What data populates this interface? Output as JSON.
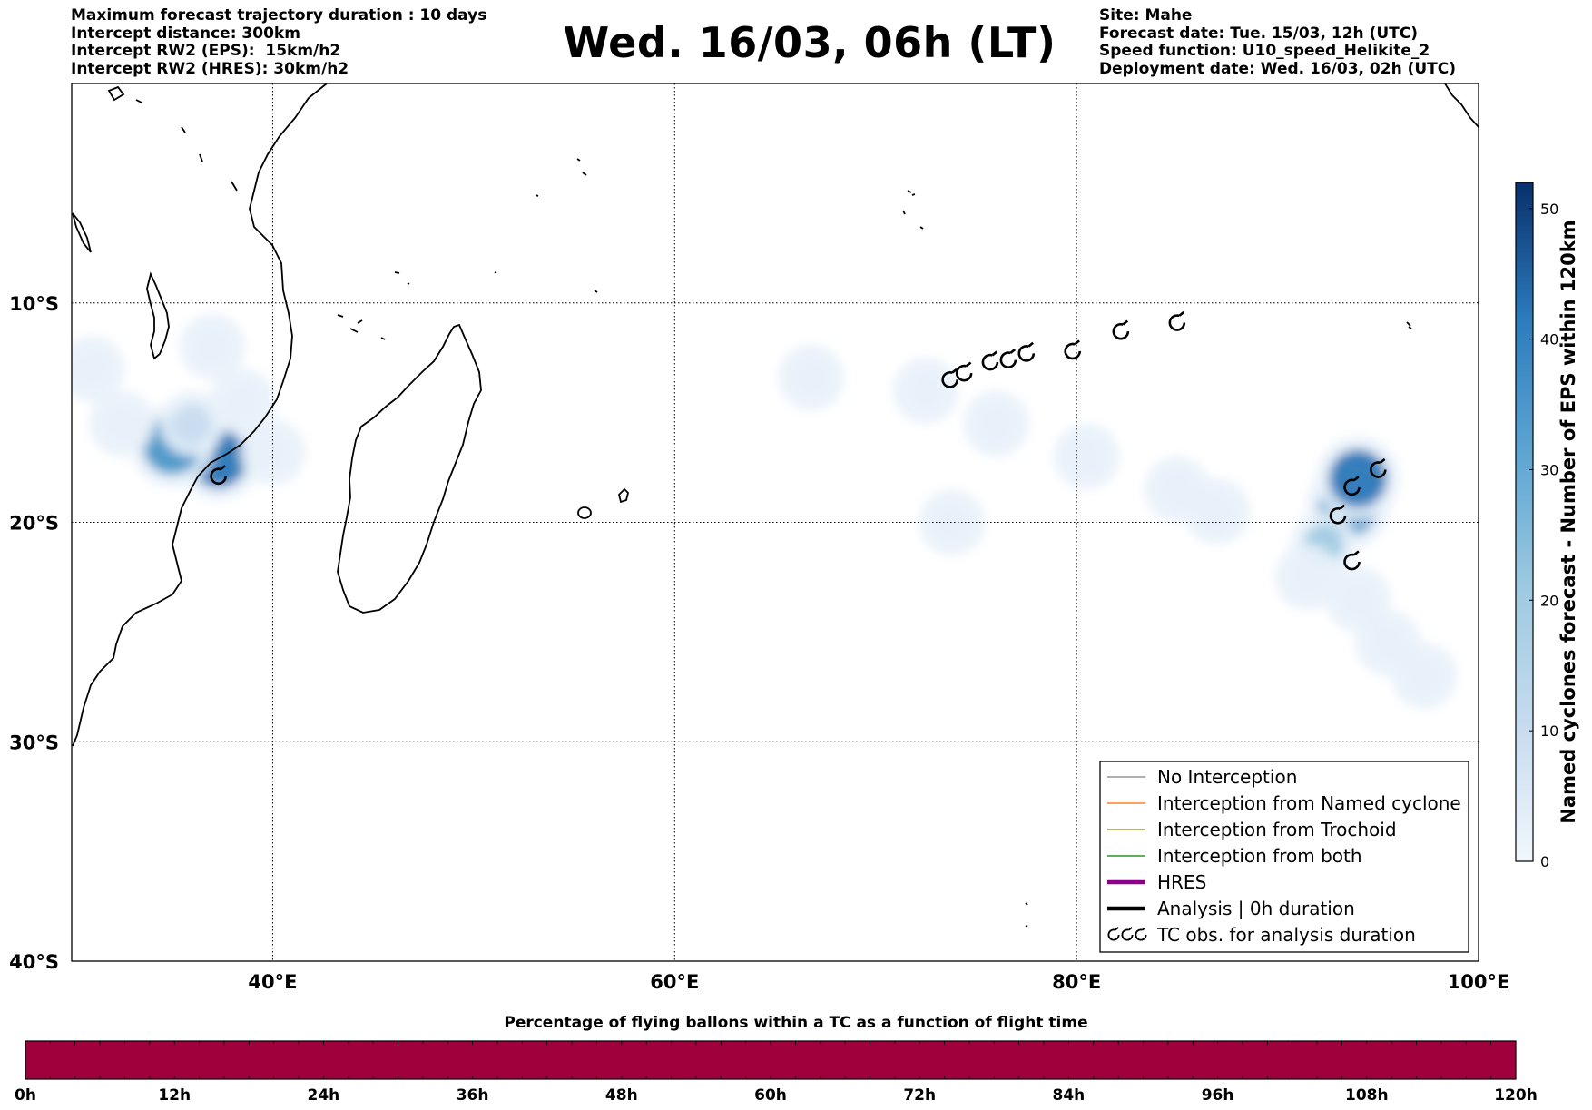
{
  "header_left": [
    "Maximum forecast trajectory duration : 10 days",
    "Intercept distance: 300km",
    "Intercept RW2 (EPS):  15km/h2",
    "Intercept RW2 (HRES): 30km/h2"
  ],
  "header_right": [
    "Site: Mahe",
    "Forecast date: Tue. 15/03, 12h (UTC)",
    "Speed function: U10_speed_Helikite_2",
    "Deployment date: Wed. 16/03, 02h (UTC)"
  ],
  "title": "Wed. 16/03, 06h (LT)",
  "map": {
    "lon_range": [
      30,
      100
    ],
    "lat_range": [
      -40,
      0
    ],
    "lon_ticks": [
      {
        "value": 40,
        "label": "40°E"
      },
      {
        "value": 60,
        "label": "60°E"
      },
      {
        "value": 80,
        "label": "80°E"
      },
      {
        "value": 100,
        "label": "100°E"
      }
    ],
    "lat_ticks": [
      {
        "value": -10,
        "label": "10°S"
      },
      {
        "value": -20,
        "label": "20°S"
      },
      {
        "value": -30,
        "label": "30°S"
      },
      {
        "value": -40,
        "label": "40°S"
      }
    ],
    "grid": "dotted",
    "coastline_color": "#000000"
  },
  "legend": {
    "placement": "lower-right",
    "items": [
      {
        "label": "No Interception",
        "color": "#808080",
        "style": "thin-line"
      },
      {
        "label": "Interception from Named cyclone",
        "color": "#ff6600",
        "style": "thin-line"
      },
      {
        "label": "Interception from Trochoid",
        "color": "#8b8b00",
        "style": "thin-line"
      },
      {
        "label": "Interception from both",
        "color": "#008000",
        "style": "thin-line"
      },
      {
        "label": "HRES",
        "color": "#8b008b",
        "style": "thick-line"
      },
      {
        "label": "Analysis | 0h duration",
        "color": "#000000",
        "style": "thick-line"
      },
      {
        "label": "TC obs. for analysis duration",
        "color": "#000000",
        "style": "cyclone-symbols"
      }
    ]
  },
  "colorbar": {
    "label": "Named cyclones forecast - Number of EPS within 120km",
    "range": [
      0,
      52
    ],
    "ticks": [
      "0",
      "10",
      "20",
      "30",
      "40",
      "50"
    ],
    "colors": [
      "#e8f1fa",
      "#c6dbef",
      "#9ecae1",
      "#6baed6",
      "#4292c6",
      "#2171b5",
      "#084594"
    ]
  },
  "density_blobs": [
    {
      "lon": 37.3,
      "lat": -17.1,
      "level": 48
    },
    {
      "lon": 35.0,
      "lat": -16.5,
      "level": 40
    },
    {
      "lon": 36.0,
      "lat": -15.5,
      "level": 12
    },
    {
      "lon": 38.5,
      "lat": -14.5,
      "level": 4
    },
    {
      "lon": 32.5,
      "lat": -15.5,
      "level": 6
    },
    {
      "lon": 31.0,
      "lat": -13.0,
      "level": 2
    },
    {
      "lon": 40.0,
      "lat": -16.8,
      "level": 3
    },
    {
      "lon": 37.0,
      "lat": -12.0,
      "level": 2
    },
    {
      "lon": 72.5,
      "lat": -14.0,
      "level": 1
    },
    {
      "lon": 66.8,
      "lat": -13.4,
      "level": 1
    },
    {
      "lon": 76.0,
      "lat": -15.5,
      "level": 1
    },
    {
      "lon": 80.5,
      "lat": -17.0,
      "level": 2
    },
    {
      "lon": 85.0,
      "lat": -18.5,
      "level": 2
    },
    {
      "lon": 87.0,
      "lat": -19.5,
      "level": 3
    },
    {
      "lon": 73.8,
      "lat": -20.0,
      "level": 1
    },
    {
      "lon": 93.5,
      "lat": -19.3,
      "level": 40
    },
    {
      "lon": 94.0,
      "lat": -18.0,
      "level": 45
    },
    {
      "lon": 92.3,
      "lat": -21.0,
      "level": 22
    },
    {
      "lon": 91.5,
      "lat": -22.5,
      "level": 6
    },
    {
      "lon": 94.0,
      "lat": -23.5,
      "level": 8
    },
    {
      "lon": 95.5,
      "lat": -25.5,
      "level": 4
    },
    {
      "lon": 97.3,
      "lat": -27.0,
      "level": 2
    }
  ],
  "tc_observations": [
    {
      "lon": 37.3,
      "lat": -17.9
    },
    {
      "lon": 73.7,
      "lat": -13.5
    },
    {
      "lon": 74.4,
      "lat": -13.2
    },
    {
      "lon": 75.7,
      "lat": -12.7
    },
    {
      "lon": 76.6,
      "lat": -12.6
    },
    {
      "lon": 77.5,
      "lat": -12.3
    },
    {
      "lon": 79.8,
      "lat": -12.2
    },
    {
      "lon": 82.2,
      "lat": -11.3
    },
    {
      "lon": 85.0,
      "lat": -10.9
    },
    {
      "lon": 95.0,
      "lat": -17.6
    },
    {
      "lon": 93.7,
      "lat": -18.4
    },
    {
      "lon": 93.0,
      "lat": -19.7
    },
    {
      "lon": 93.7,
      "lat": -21.8
    }
  ],
  "timebar": {
    "title": "Percentage of flying ballons within a TC as a function of flight time",
    "fill_color": "#a0003c",
    "range_hours": [
      0,
      120
    ],
    "labels": [
      "0h",
      "12h",
      "24h",
      "36h",
      "48h",
      "60h",
      "72h",
      "84h",
      "96h",
      "108h",
      "120h"
    ]
  }
}
